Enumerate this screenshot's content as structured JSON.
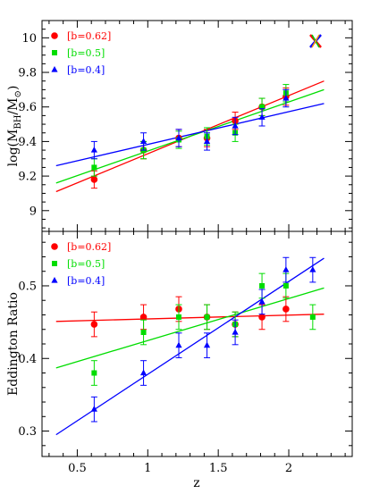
{
  "chart_data": [
    {
      "type": "scatter",
      "panel": "top",
      "ylabel_main": "log(M",
      "ylabel_sub1": "BH",
      "ylabel_mid": "/M",
      "ylabel_sub2": "⊙",
      "ylabel_end": ")",
      "xlim": [
        0.25,
        2.45
      ],
      "ylim": [
        8.88,
        10.1
      ],
      "yticks": [
        9,
        9.2,
        9.4,
        9.6,
        9.8,
        10
      ],
      "ytick_labels": [
        "9",
        "9.2",
        "9.4",
        "9.6",
        "9.8",
        "10"
      ],
      "legend_position": "top-left",
      "series": [
        {
          "name": "[b=0.62]",
          "color": "#ff0000",
          "marker": "circle",
          "x": [
            0.62,
            0.97,
            1.22,
            1.42,
            1.62,
            1.81,
            1.98
          ],
          "y": [
            9.18,
            9.35,
            9.42,
            9.42,
            9.52,
            9.6,
            9.66
          ],
          "err": [
            0.05,
            0.05,
            0.05,
            0.05,
            0.05,
            0.05,
            0.05
          ],
          "fit": [
            [
              0.35,
              9.11
            ],
            [
              2.25,
              9.75
            ]
          ]
        },
        {
          "name": "[b=0.5]",
          "color": "#00dd00",
          "marker": "square",
          "x": [
            0.62,
            0.97,
            1.22,
            1.42,
            1.62,
            1.81,
            1.98
          ],
          "y": [
            9.25,
            9.35,
            9.41,
            9.43,
            9.45,
            9.6,
            9.68
          ],
          "err": [
            0.05,
            0.05,
            0.05,
            0.05,
            0.05,
            0.05,
            0.05
          ],
          "fit": [
            [
              0.35,
              9.16
            ],
            [
              2.25,
              9.7
            ]
          ]
        },
        {
          "name": "[b=0.4]",
          "color": "#0000ff",
          "marker": "triangle",
          "x": [
            0.62,
            0.97,
            1.22,
            1.42,
            1.62,
            1.81,
            1.98
          ],
          "y": [
            9.35,
            9.4,
            9.42,
            9.4,
            9.49,
            9.54,
            9.65
          ],
          "err": [
            0.05,
            0.05,
            0.05,
            0.05,
            0.05,
            0.05,
            0.05
          ],
          "fit": [
            [
              0.35,
              9.26
            ],
            [
              2.25,
              9.62
            ]
          ]
        }
      ]
    },
    {
      "type": "scatter",
      "panel": "bottom",
      "xlabel": "z",
      "ylabel": "Eddington Ratio",
      "xlim": [
        0.25,
        2.45
      ],
      "ylim": [
        0.265,
        0.575
      ],
      "xticks": [
        0.5,
        1,
        1.5,
        2
      ],
      "xtick_labels": [
        "0.5",
        "1",
        "1.5",
        "2"
      ],
      "yticks": [
        0.3,
        0.4,
        0.5
      ],
      "ytick_labels": [
        "0.3",
        "0.4",
        "0.5"
      ],
      "legend_position": "top-left",
      "series": [
        {
          "name": "[b=0.62]",
          "color": "#ff0000",
          "marker": "circle",
          "x": [
            0.62,
            0.97,
            1.22,
            1.42,
            1.62,
            1.81,
            1.98
          ],
          "y": [
            0.447,
            0.457,
            0.468,
            0.457,
            0.447,
            0.457,
            0.468
          ],
          "err": [
            0.017,
            0.017,
            0.017,
            0.017,
            0.017,
            0.017,
            0.017
          ],
          "fit": [
            [
              0.35,
              0.451
            ],
            [
              2.25,
              0.461
            ]
          ]
        },
        {
          "name": "[b=0.5]",
          "color": "#00dd00",
          "marker": "square",
          "x": [
            0.62,
            0.97,
            1.22,
            1.42,
            1.62,
            1.81,
            1.98,
            2.17
          ],
          "y": [
            0.38,
            0.436,
            0.457,
            0.457,
            0.447,
            0.5,
            0.5,
            0.457
          ],
          "err": [
            0.017,
            0.017,
            0.017,
            0.017,
            0.017,
            0.017,
            0.017,
            0.017
          ],
          "fit": [
            [
              0.35,
              0.387
            ],
            [
              2.25,
              0.497
            ]
          ]
        },
        {
          "name": "[b=0.4]",
          "color": "#0000ff",
          "marker": "triangle",
          "x": [
            0.62,
            0.97,
            1.22,
            1.42,
            1.62,
            1.81,
            1.98,
            2.17
          ],
          "y": [
            0.33,
            0.38,
            0.418,
            0.418,
            0.436,
            0.478,
            0.522,
            0.522
          ],
          "err": [
            0.017,
            0.017,
            0.017,
            0.017,
            0.017,
            0.017,
            0.017,
            0.017
          ],
          "fit": [
            [
              0.35,
              0.295
            ],
            [
              2.25,
              0.538
            ]
          ]
        }
      ]
    }
  ]
}
